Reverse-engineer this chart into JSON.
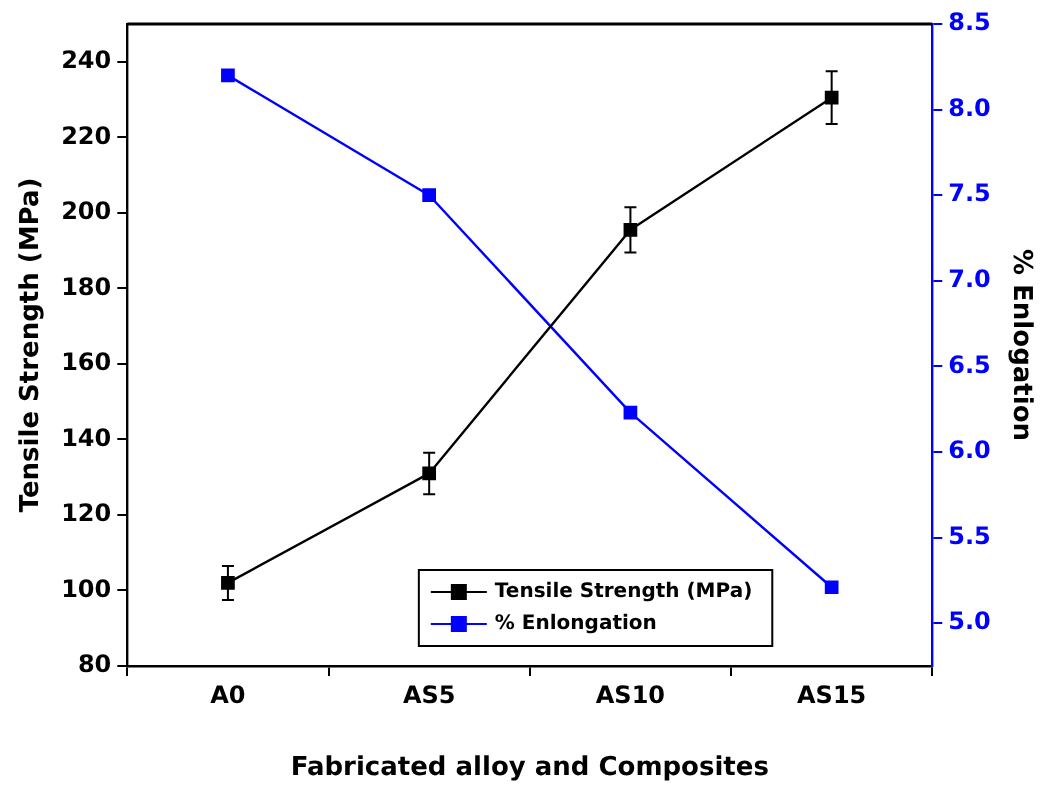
{
  "chart_data": {
    "type": "line",
    "xlabel": "Fabricated alloy and Composites",
    "ylabel": "Tensile Strength (MPa)",
    "y2label": "% Enlogation",
    "categories": [
      "A0",
      "AS5",
      "AS10",
      "AS15"
    ],
    "series": [
      {
        "name": "Tensile Strength (MPa)",
        "color": "#000000",
        "values": [
          102,
          131,
          195.5,
          230.5
        ],
        "errors": [
          4.5,
          5.5,
          6,
          7
        ]
      },
      {
        "name": "% Enlongation",
        "color": "#0000ff",
        "axis": "y2",
        "values": [
          8.2,
          7.5,
          6.23,
          5.21
        ]
      }
    ],
    "ylim": [
      80,
      250
    ],
    "yticks": [
      80,
      100,
      120,
      140,
      160,
      180,
      200,
      220,
      240
    ],
    "y2lim": [
      4.75,
      8.5
    ],
    "y2ticks": [
      {
        "value": 5,
        "label": "5.0"
      },
      5.5,
      {
        "value": 6,
        "label": "6.0"
      },
      6.5,
      {
        "value": 7,
        "label": "7.0"
      },
      7.5,
      {
        "value": 8,
        "label": "8.0"
      },
      8.5
    ],
    "marker": "square",
    "line_style": "solid",
    "grid": false,
    "legend": "bottom right"
  }
}
